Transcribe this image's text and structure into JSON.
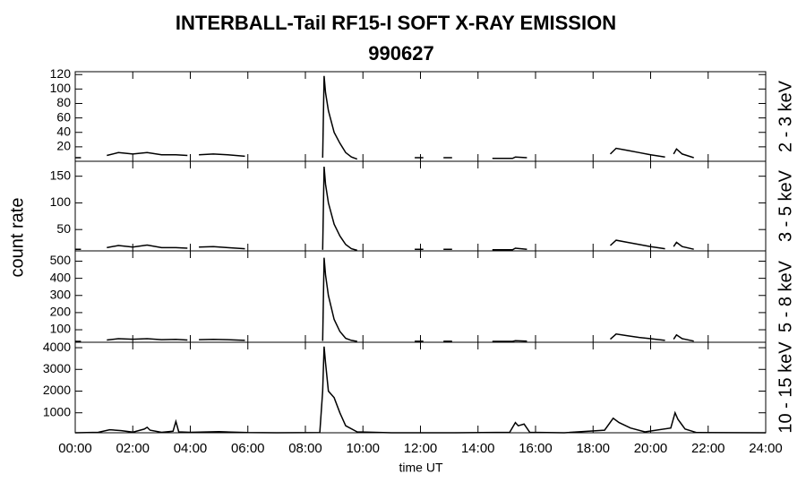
{
  "title": "INTERBALL-Tail RF15-I SOFT X-RAY EMISSION",
  "subtitle": "990627",
  "ylabel": "count rate",
  "xlabel": "time UT",
  "chart_data": [
    {
      "type": "line",
      "ylabel": "2 - 3 keV",
      "color": "#000000",
      "xlim": [
        0,
        24
      ],
      "ylim": [
        0,
        124
      ],
      "yticks": [
        20,
        40,
        60,
        80,
        100,
        120
      ],
      "x": [
        0,
        0.2,
        0.5,
        1.1,
        1.5,
        2.0,
        2.5,
        3.0,
        3.5,
        3.9,
        4.1,
        4.3,
        4.8,
        5.3,
        5.9,
        7,
        8.5,
        8.6,
        8.65,
        8.7,
        8.8,
        9.0,
        9.2,
        9.4,
        9.6,
        9.8,
        10.5,
        11.8,
        12.1,
        12.5,
        12.8,
        13.1,
        13.8,
        14.5,
        14.9,
        15.2,
        15.3,
        15.7,
        17,
        18.6,
        18.8,
        19.2,
        19.6,
        20.0,
        20.5,
        20.65,
        20.8,
        20.9,
        21.1,
        21.5
      ],
      "values": [
        5,
        5,
        null,
        8,
        12,
        10,
        12,
        9,
        9,
        8,
        null,
        9,
        10,
        9,
        7,
        null,
        null,
        5,
        118,
        95,
        70,
        40,
        25,
        12,
        6,
        3,
        null,
        5,
        5,
        null,
        5,
        5,
        null,
        4,
        4,
        4,
        6,
        5,
        null,
        10,
        18,
        15,
        12,
        9,
        6,
        null,
        10,
        17,
        10,
        5
      ]
    },
    {
      "type": "line",
      "ylabel": "3 - 5 keV",
      "color": "#000000",
      "xlim": [
        0,
        24
      ],
      "ylim": [
        10,
        178
      ],
      "yticks": [
        50,
        100,
        150
      ],
      "x": [
        0,
        0.2,
        0.5,
        1.1,
        1.5,
        2.0,
        2.5,
        3.0,
        3.5,
        3.9,
        4.1,
        4.3,
        4.8,
        5.3,
        5.9,
        7,
        8.5,
        8.6,
        8.65,
        8.7,
        8.8,
        9.0,
        9.2,
        9.4,
        9.6,
        9.8,
        10.5,
        11.8,
        12.1,
        12.5,
        12.8,
        13.1,
        13.8,
        14.5,
        14.9,
        15.2,
        15.3,
        15.7,
        17,
        18.6,
        18.8,
        19.2,
        19.6,
        20.0,
        20.5,
        20.65,
        20.8,
        20.9,
        21.1,
        21.5
      ],
      "values": [
        13,
        13,
        null,
        16,
        20,
        17,
        21,
        16,
        16,
        15,
        null,
        17,
        18,
        16,
        14,
        null,
        null,
        12,
        168,
        135,
        100,
        60,
        38,
        22,
        14,
        11,
        null,
        13,
        13,
        null,
        13,
        13,
        null,
        12,
        12,
        12,
        15,
        13,
        null,
        20,
        30,
        26,
        22,
        18,
        14,
        null,
        18,
        26,
        18,
        13
      ]
    },
    {
      "type": "line",
      "ylabel": "5 - 8 keV",
      "color": "#000000",
      "xlim": [
        0,
        24
      ],
      "ylim": [
        27,
        560
      ],
      "yticks": [
        100,
        200,
        300,
        400,
        500
      ],
      "x": [
        0,
        0.2,
        0.5,
        1.1,
        1.5,
        2.0,
        2.5,
        3.0,
        3.5,
        3.9,
        4.1,
        4.3,
        4.8,
        5.3,
        5.9,
        7,
        8.5,
        8.6,
        8.65,
        8.7,
        8.8,
        9.0,
        9.2,
        9.4,
        9.6,
        9.8,
        10.5,
        11.8,
        12.1,
        12.5,
        12.8,
        13.1,
        13.8,
        14.5,
        14.9,
        15.2,
        15.3,
        15.7,
        17,
        18.6,
        18.8,
        19.2,
        19.6,
        20.0,
        20.5,
        20.65,
        20.8,
        20.9,
        21.1,
        21.5
      ],
      "values": [
        32,
        32,
        null,
        40,
        48,
        45,
        48,
        42,
        44,
        40,
        null,
        42,
        44,
        42,
        38,
        null,
        null,
        35,
        520,
        420,
        300,
        160,
        90,
        50,
        38,
        32,
        null,
        33,
        33,
        null,
        33,
        33,
        null,
        32,
        32,
        32,
        36,
        34,
        null,
        45,
        75,
        65,
        55,
        48,
        38,
        null,
        45,
        70,
        48,
        34
      ]
    },
    {
      "type": "line",
      "ylabel": "10 - 15 keV",
      "color": "#000000",
      "xlim": [
        0,
        24
      ],
      "ylim": [
        80,
        4250
      ],
      "yticks": [
        1000,
        2000,
        3000,
        4000
      ],
      "xticks": [
        {
          "value": 0,
          "label": "00:00"
        },
        {
          "value": 2,
          "label": "02:00"
        },
        {
          "value": 4,
          "label": "04:00"
        },
        {
          "value": 6,
          "label": "06:00"
        },
        {
          "value": 8,
          "label": "08:00"
        },
        {
          "value": 10,
          "label": "10:00"
        },
        {
          "value": 12,
          "label": "12:00"
        },
        {
          "value": 14,
          "label": "14:00"
        },
        {
          "value": 16,
          "label": "16:00"
        },
        {
          "value": 18,
          "label": "18:00"
        },
        {
          "value": 20,
          "label": "20:00"
        },
        {
          "value": 22,
          "label": "22:00"
        },
        {
          "value": 24,
          "label": "24:00"
        }
      ],
      "x": [
        0,
        0.8,
        1.2,
        1.6,
        2.0,
        2.4,
        2.5,
        2.6,
        3.0,
        3.4,
        3.5,
        3.6,
        4.0,
        5.0,
        6.0,
        7.0,
        8.5,
        8.6,
        8.65,
        8.7,
        8.8,
        9.0,
        9.2,
        9.4,
        9.8,
        11,
        13,
        15.1,
        15.3,
        15.4,
        15.6,
        15.8,
        17,
        18.4,
        18.7,
        18.9,
        19.3,
        19.8,
        20.7,
        20.85,
        20.95,
        21.2,
        21.6,
        24
      ],
      "values": [
        80,
        100,
        220,
        180,
        110,
        250,
        330,
        200,
        100,
        150,
        600,
        120,
        100,
        130,
        90,
        80,
        90,
        2000,
        4050,
        3300,
        2000,
        1700,
        1000,
        400,
        120,
        80,
        80,
        100,
        550,
        400,
        480,
        100,
        80,
        200,
        750,
        550,
        300,
        120,
        300,
        1000,
        700,
        250,
        90,
        80
      ]
    }
  ]
}
